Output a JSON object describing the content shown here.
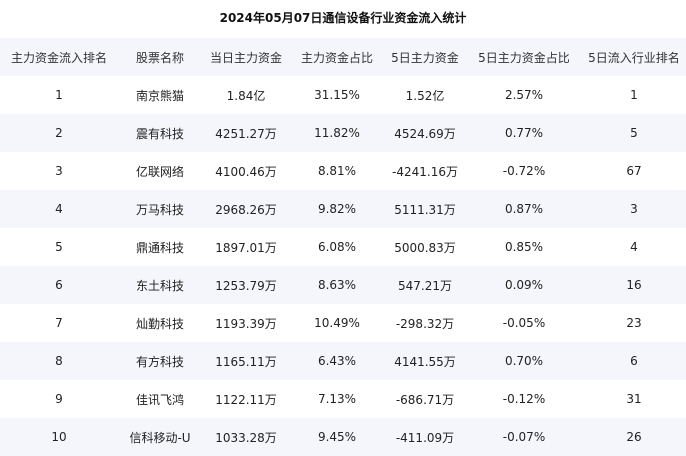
{
  "chart_data": {
    "type": "table",
    "title": "2024年05月07日通信设备行业资金流入统计",
    "columns": [
      "主力资金流入排名",
      "股票名称",
      "当日主力资金",
      "主力资金占比",
      "5日主力资金",
      "5日主力资金占比",
      "5日流入行业排名"
    ],
    "rows": [
      [
        "1",
        "南京熊猫",
        "1.84亿",
        "31.15%",
        "1.52亿",
        "2.57%",
        "1"
      ],
      [
        "2",
        "震有科技",
        "4251.27万",
        "11.82%",
        "4524.69万",
        "0.77%",
        "5"
      ],
      [
        "3",
        "亿联网络",
        "4100.46万",
        "8.81%",
        "-4241.16万",
        "-0.72%",
        "67"
      ],
      [
        "4",
        "万马科技",
        "2968.26万",
        "9.82%",
        "5111.31万",
        "0.87%",
        "3"
      ],
      [
        "5",
        "鼎通科技",
        "1897.01万",
        "6.08%",
        "5000.83万",
        "0.85%",
        "4"
      ],
      [
        "6",
        "东土科技",
        "1253.79万",
        "8.63%",
        "547.21万",
        "0.09%",
        "16"
      ],
      [
        "7",
        "灿勤科技",
        "1193.39万",
        "10.49%",
        "-298.32万",
        "-0.05%",
        "23"
      ],
      [
        "8",
        "有方科技",
        "1165.11万",
        "6.43%",
        "4141.55万",
        "0.70%",
        "6"
      ],
      [
        "9",
        "佳讯飞鸿",
        "1122.11万",
        "7.13%",
        "-686.71万",
        "-0.12%",
        "31"
      ],
      [
        "10",
        "信科移动-U",
        "1033.28万",
        "9.45%",
        "-411.09万",
        "-0.07%",
        "26"
      ]
    ],
    "colors": {
      "header_bg": "#f4f6fb",
      "stripe_bg": "#f4f6fb",
      "text": "#222222"
    }
  }
}
